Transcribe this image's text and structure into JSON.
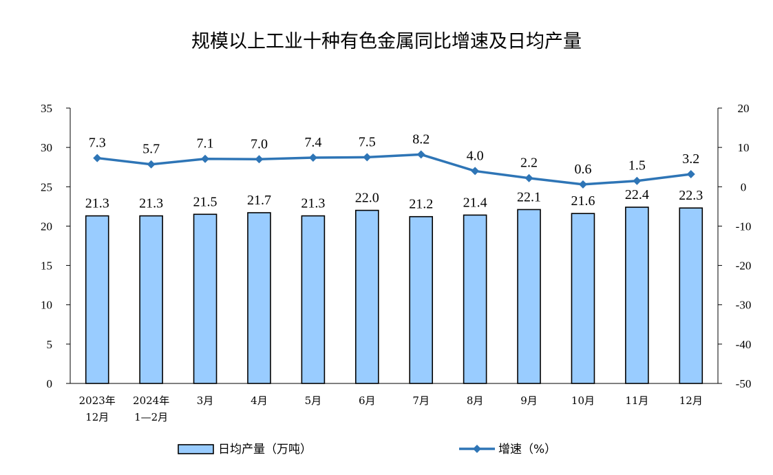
{
  "title": "规模以上工业十种有色金属同比增速及日均产量",
  "chart_data": {
    "type": "bar+line",
    "categories": [
      [
        "2023年",
        "12月"
      ],
      [
        "2024年",
        "1—2月"
      ],
      [
        "3月"
      ],
      [
        "4月"
      ],
      [
        "5月"
      ],
      [
        "6月"
      ],
      [
        "7月"
      ],
      [
        "8月"
      ],
      [
        "9月"
      ],
      [
        "10月"
      ],
      [
        "11月"
      ],
      [
        "12月"
      ]
    ],
    "series": [
      {
        "name": "日均产量（万吨）",
        "type": "bar",
        "axis": "left",
        "values": [
          21.3,
          21.3,
          21.5,
          21.7,
          21.3,
          22.0,
          21.2,
          21.4,
          22.1,
          21.6,
          22.4,
          22.3
        ],
        "labels": [
          "21.3",
          "21.3",
          "21.5",
          "21.7",
          "21.3",
          "22.0",
          "21.2",
          "21.4",
          "22.1",
          "21.6",
          "22.4",
          "22.3"
        ],
        "color": "#99ccff"
      },
      {
        "name": "增速（%）",
        "type": "line",
        "axis": "right",
        "values": [
          7.3,
          5.7,
          7.1,
          7.0,
          7.4,
          7.5,
          8.2,
          4.0,
          2.2,
          0.6,
          1.5,
          3.2
        ],
        "labels": [
          "7.3",
          "5.7",
          "7.1",
          "7.0",
          "7.4",
          "7.5",
          "8.2",
          "4.0",
          "2.2",
          "0.6",
          "1.5",
          "3.2"
        ],
        "color": "#2e75b6"
      }
    ],
    "y_left": {
      "ylim": [
        0,
        35
      ],
      "ticks": [
        "0",
        "5",
        "10",
        "15",
        "20",
        "25",
        "30",
        "35"
      ]
    },
    "y_right": {
      "ylim": [
        -50,
        20
      ],
      "ticks": [
        "-50",
        "-40",
        "-30",
        "-20",
        "-10",
        "0",
        "10",
        "20"
      ]
    },
    "grid": false,
    "legend_position": "bottom"
  }
}
